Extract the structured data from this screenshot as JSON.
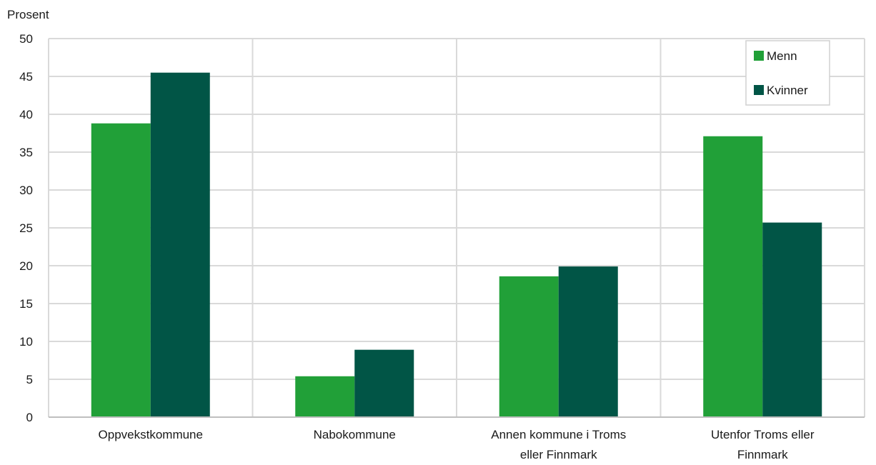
{
  "chart_data": {
    "type": "bar",
    "ylabel": "Prosent",
    "ylim": [
      0,
      50
    ],
    "yticks": [
      0,
      5,
      10,
      15,
      20,
      25,
      30,
      35,
      40,
      45,
      50
    ],
    "grid": true,
    "legend_position": "top-right",
    "categories": [
      [
        "Oppvekstkommune"
      ],
      [
        "Nabokommune"
      ],
      [
        "Annen kommune i Troms",
        "eller Finnmark"
      ],
      [
        "Utenfor Troms eller",
        "Finnmark"
      ]
    ],
    "series": [
      {
        "name": "Menn",
        "color": "#21a038",
        "values": [
          38.8,
          5.4,
          18.6,
          37.1
        ]
      },
      {
        "name": "Kvinner",
        "color": "#015546",
        "values": [
          45.5,
          8.9,
          19.9,
          25.7
        ]
      }
    ]
  }
}
